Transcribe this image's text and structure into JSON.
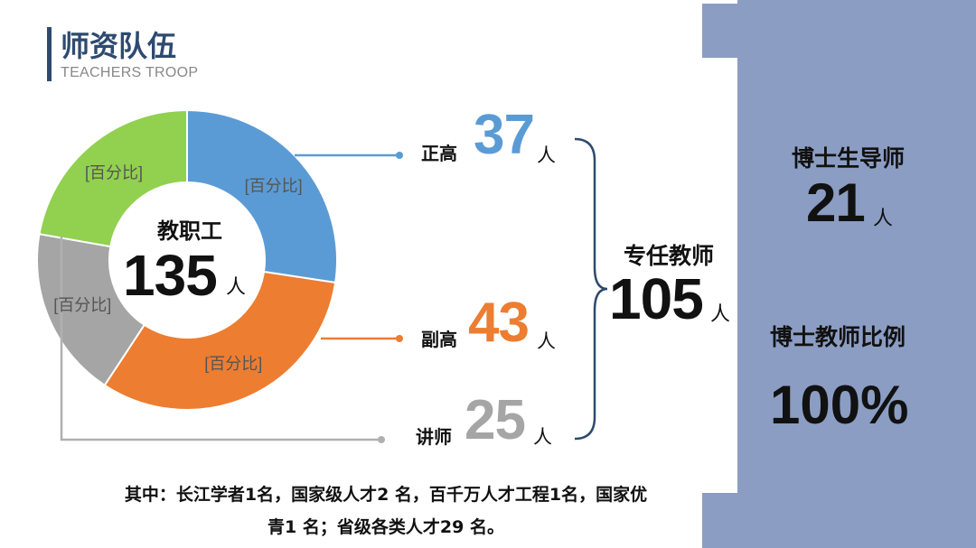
{
  "header": {
    "title": "师资队伍",
    "subtitle": "TEACHERS TROOP"
  },
  "chart_data": {
    "type": "pie",
    "style": "donut",
    "center_label": "教职工",
    "center_value": "135",
    "center_unit": "人",
    "slice_labels": [
      "[百分比]",
      "[百分比]",
      "[百分比]",
      "[百分比]"
    ],
    "series": [
      {
        "name": "正高",
        "value": 37,
        "color": "#5b9bd5"
      },
      {
        "name": "副高",
        "value": 43,
        "color": "#ed7d31"
      },
      {
        "name": "讲师",
        "value": 25,
        "color": "#a5a5a5"
      },
      {
        "value": 30,
        "color": "#92d050"
      }
    ]
  },
  "categories": {
    "zhenggao": {
      "label": "正高",
      "value": "37",
      "unit": "人",
      "color": "#5b9bd5"
    },
    "fugao": {
      "label": "副高",
      "value": "43",
      "unit": "人",
      "color": "#ed7d31"
    },
    "jiangshi": {
      "label": "讲师",
      "value": "25",
      "unit": "人",
      "color": "#a5a5a5"
    }
  },
  "brace": {
    "label": "专任教师",
    "value": "105",
    "unit": "人"
  },
  "side_panel": {
    "label_1": "博士生导师",
    "value_1": "21",
    "unit_1": "人",
    "label_2": "博士教师比例",
    "value_2": "100%"
  },
  "footnote": {
    "line1": "其中：长江学者1名，国家级人才2 名，百千万人才工程1名，国家优",
    "line2": "青1 名；省级各类人才29 名。"
  }
}
